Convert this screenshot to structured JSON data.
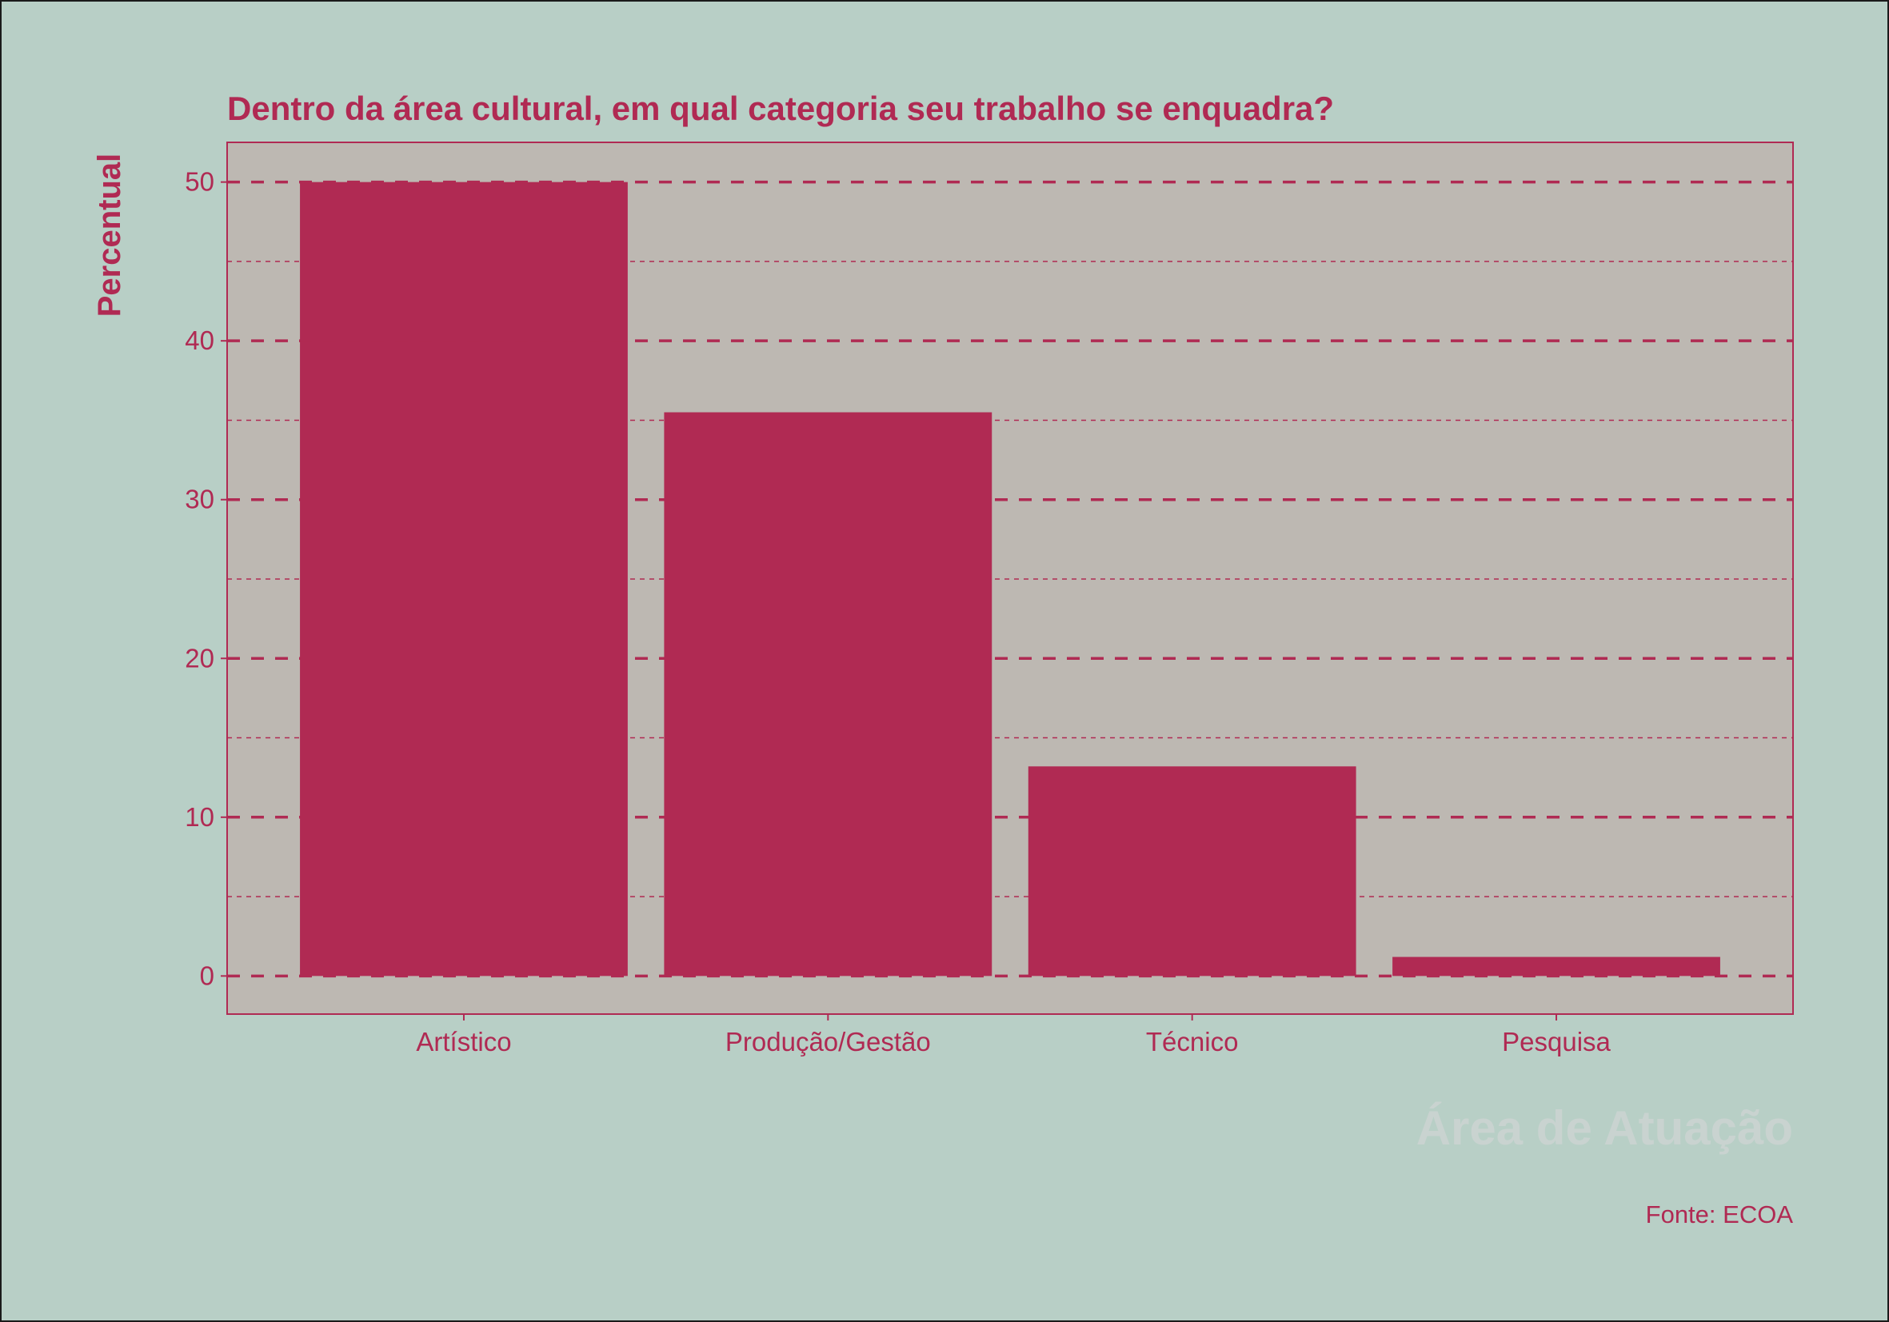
{
  "colors": {
    "background": "#b8cfc6",
    "panel": "#bdb8b2",
    "accent": "#b02a53",
    "xlabel_color": "#c9d3d0"
  },
  "chart_data": {
    "type": "bar",
    "title": "Dentro da área cultural, em qual categoria seu trabalho se enquadra?",
    "xlabel": "Área de Atuação",
    "ylabel": "Percentual",
    "caption": "Fonte: ECOA",
    "categories": [
      "Artístico",
      "Produção/Gestão",
      "Técnico",
      "Pesquisa"
    ],
    "values": [
      50.0,
      35.5,
      13.2,
      1.2
    ],
    "ylim": [
      -2.4,
      52.5
    ],
    "yticks": [
      0,
      10,
      20,
      30,
      40,
      50
    ],
    "grid": "dashed major and minor horizontal lines",
    "legend": "none"
  }
}
